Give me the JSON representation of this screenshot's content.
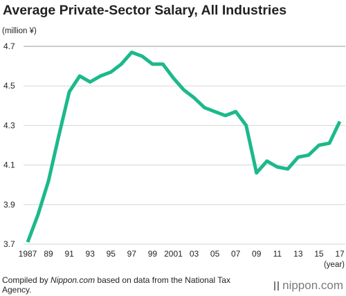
{
  "chart_data": {
    "type": "line",
    "title": "Average Private-Sector Salary, All Industries",
    "ylabel": "(million ¥)",
    "xlabel": "(year)",
    "ylim": [
      3.7,
      4.7
    ],
    "y_ticks": [
      "3.7",
      "3.9",
      "4.1",
      "4.3",
      "4.5",
      "4.7"
    ],
    "x_tick_labels": [
      "1987",
      "89",
      "91",
      "93",
      "95",
      "97",
      "99",
      "2001",
      "03",
      "05",
      "07",
      "09",
      "11",
      "13",
      "15",
      "17"
    ],
    "grid": "horizontal",
    "series": [
      {
        "color": "#1cb98b",
        "x": [
          1987,
          1988,
          1989,
          1990,
          1991,
          1992,
          1993,
          1994,
          1995,
          1996,
          1997,
          1998,
          1999,
          2000,
          2001,
          2002,
          2003,
          2004,
          2005,
          2006,
          2007,
          2008,
          2009,
          2010,
          2011,
          2012,
          2013,
          2014,
          2015,
          2016,
          2017
        ],
        "y": [
          3.71,
          3.85,
          4.02,
          4.25,
          4.47,
          4.55,
          4.52,
          4.55,
          4.57,
          4.61,
          4.67,
          4.65,
          4.61,
          4.61,
          4.54,
          4.48,
          4.44,
          4.39,
          4.37,
          4.35,
          4.37,
          4.3,
          4.06,
          4.12,
          4.09,
          4.08,
          4.14,
          4.15,
          4.2,
          4.21,
          4.32
        ]
      }
    ]
  },
  "footer": {
    "prefix": "Compiled by ",
    "source_name": "Nippon.com",
    "suffix": " based on data from the National Tax Agency."
  },
  "brand": "nippon.com"
}
